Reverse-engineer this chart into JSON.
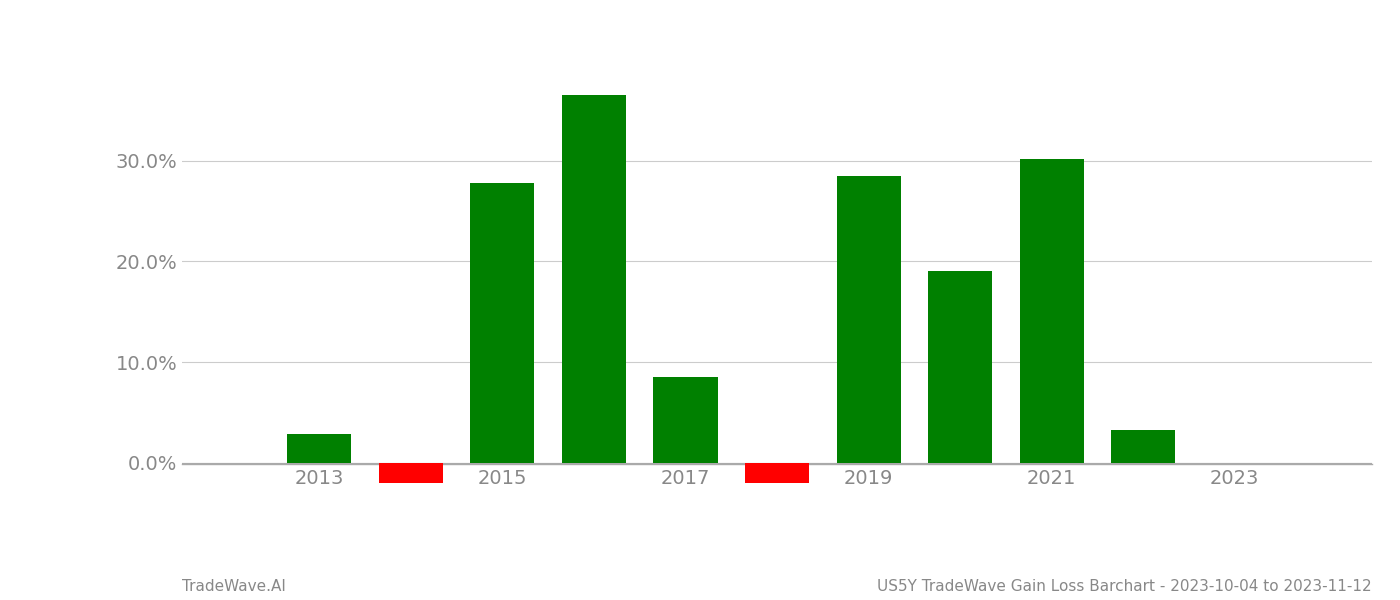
{
  "years": [
    2013,
    2014,
    2015,
    2016,
    2017,
    2018,
    2019,
    2020,
    2021,
    2022
  ],
  "values": [
    0.028,
    -0.02,
    0.278,
    0.365,
    0.085,
    -0.02,
    0.285,
    0.19,
    0.302,
    0.032
  ],
  "colors": [
    "#008000",
    "#ff0000",
    "#008000",
    "#008000",
    "#008000",
    "#ff0000",
    "#008000",
    "#008000",
    "#008000",
    "#008000"
  ],
  "xlim": [
    2011.5,
    2024.5
  ],
  "ylim": [
    -0.065,
    0.43
  ],
  "yticks": [
    0.0,
    0.1,
    0.2,
    0.3
  ],
  "xticks": [
    2013,
    2015,
    2017,
    2019,
    2021,
    2023
  ],
  "bar_width": 0.7,
  "background_color": "#ffffff",
  "grid_color": "#cccccc",
  "footer_left": "TradeWave.AI",
  "footer_right": "US5Y TradeWave Gain Loss Barchart - 2023-10-04 to 2023-11-12",
  "axis_color": "#aaaaaa",
  "tick_label_color": "#888888",
  "footer_color": "#888888",
  "footer_fontsize": 11,
  "tick_fontsize": 14
}
